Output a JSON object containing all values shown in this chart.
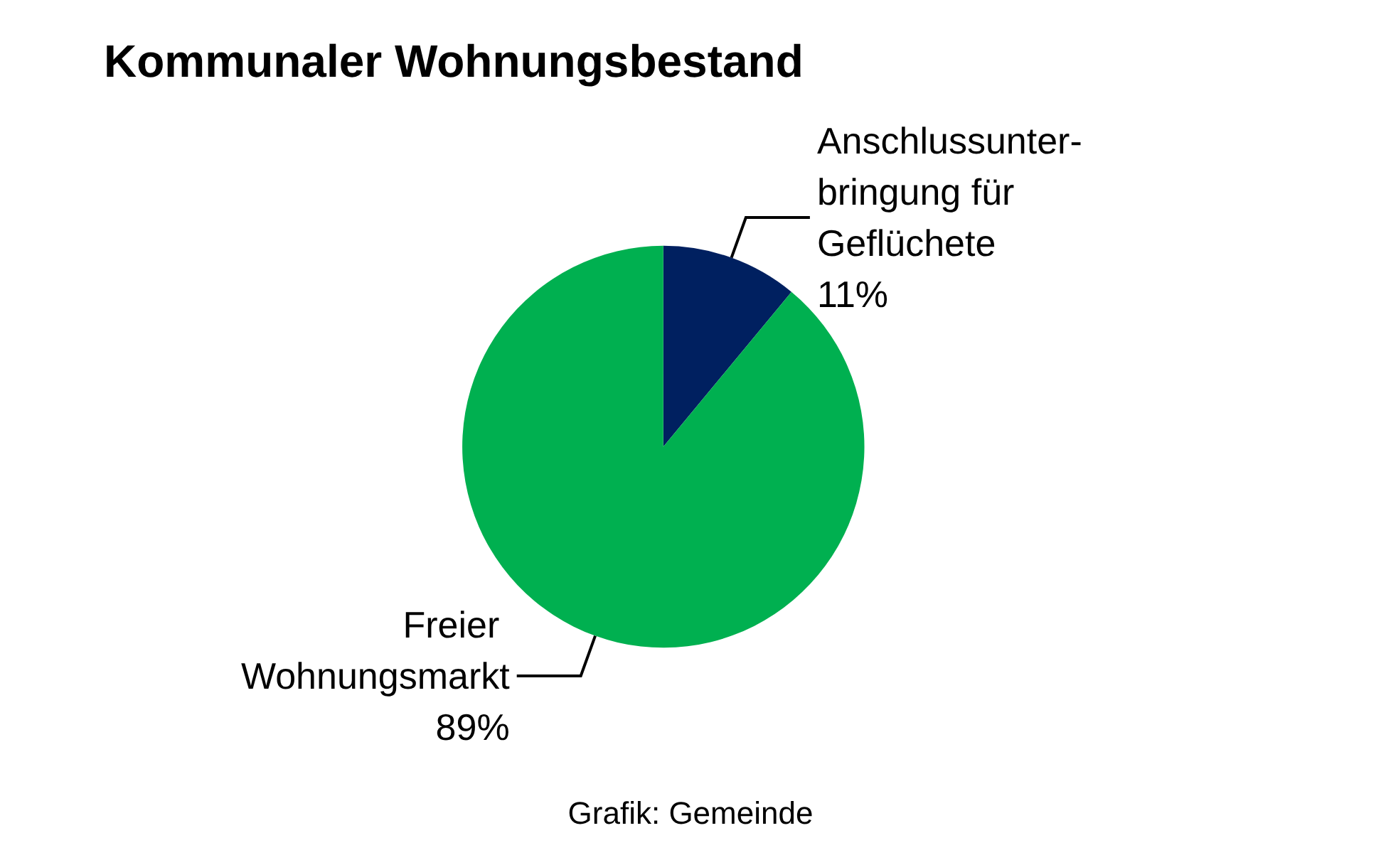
{
  "chart_data": {
    "type": "pie",
    "title": "Kommunaler Wohnungsbestand",
    "categories": [
      "Anschlussunter-bringung für Geflüchete",
      "Freier Wohnungsmarkt"
    ],
    "values": [
      11,
      89
    ],
    "colors": [
      "#002060",
      "#00b050"
    ],
    "value_labels": [
      "11%",
      "89%"
    ],
    "legend": false,
    "annotations": [
      "Grafik: Gemeinde"
    ]
  }
}
